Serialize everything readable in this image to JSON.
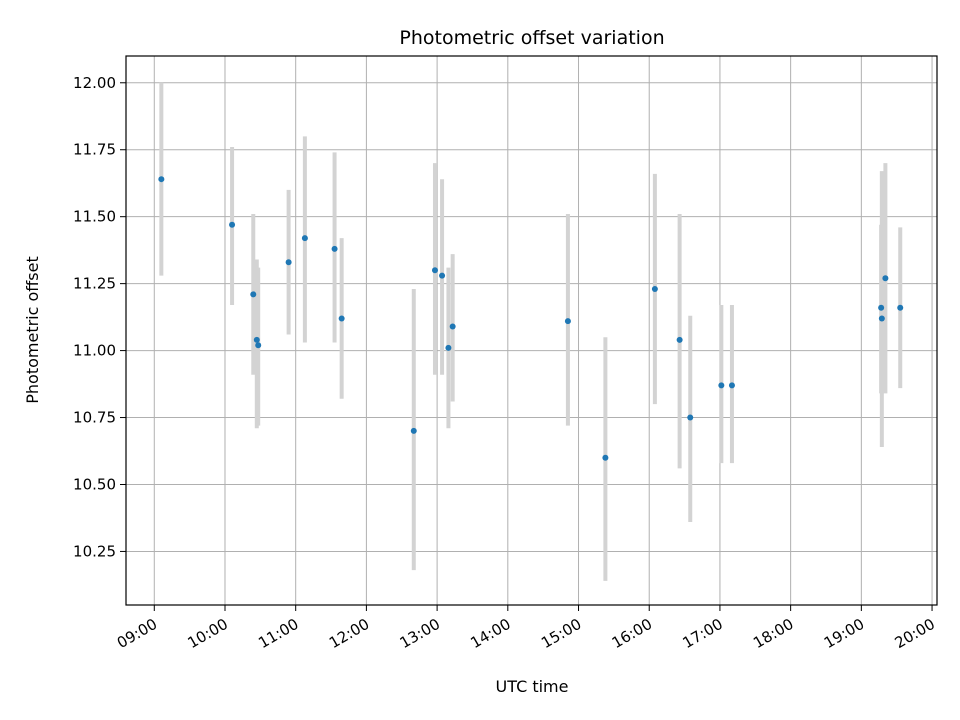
{
  "chart_data": {
    "type": "scatter",
    "title": "Photometric offset variation",
    "xlabel": "UTC time",
    "ylabel": "Photometric offset",
    "x_unit": "hours UTC",
    "xlim": [
      8.6,
      20.07
    ],
    "ylim": [
      10.05,
      12.1
    ],
    "x_ticks": [
      9,
      10,
      11,
      12,
      13,
      14,
      15,
      16,
      17,
      18,
      19,
      20
    ],
    "x_tick_labels": [
      "09:00",
      "10:00",
      "11:00",
      "12:00",
      "13:00",
      "14:00",
      "15:00",
      "16:00",
      "17:00",
      "18:00",
      "19:00",
      "20:00"
    ],
    "y_ticks": [
      10.25,
      10.5,
      10.75,
      11.0,
      11.25,
      11.5,
      11.75,
      12.0
    ],
    "y_tick_labels": [
      "10.25",
      "10.50",
      "10.75",
      "11.00",
      "11.25",
      "11.50",
      "11.75",
      "12.00"
    ],
    "grid": true,
    "legend": "none",
    "colors": {
      "point": "#1f77b4",
      "errorbar": "#d3d3d3",
      "grid": "#b0b0b0"
    },
    "points": [
      {
        "x": 9.1,
        "y": 11.64,
        "err_low": 11.28,
        "err_high": 12.0
      },
      {
        "x": 10.1,
        "y": 11.47,
        "err_low": 11.17,
        "err_high": 11.76
      },
      {
        "x": 10.4,
        "y": 11.21,
        "err_low": 10.91,
        "err_high": 11.51
      },
      {
        "x": 10.45,
        "y": 11.04,
        "err_low": 10.71,
        "err_high": 11.34
      },
      {
        "x": 10.47,
        "y": 11.02,
        "err_low": 10.72,
        "err_high": 11.31
      },
      {
        "x": 10.9,
        "y": 11.33,
        "err_low": 11.06,
        "err_high": 11.6
      },
      {
        "x": 11.13,
        "y": 11.42,
        "err_low": 11.03,
        "err_high": 11.8
      },
      {
        "x": 11.55,
        "y": 11.38,
        "err_low": 11.03,
        "err_high": 11.74
      },
      {
        "x": 11.65,
        "y": 11.12,
        "err_low": 10.82,
        "err_high": 11.42
      },
      {
        "x": 12.67,
        "y": 10.7,
        "err_low": 10.18,
        "err_high": 11.23
      },
      {
        "x": 12.97,
        "y": 11.3,
        "err_low": 10.91,
        "err_high": 11.7
      },
      {
        "x": 13.07,
        "y": 11.28,
        "err_low": 10.91,
        "err_high": 11.64
      },
      {
        "x": 13.16,
        "y": 11.01,
        "err_low": 10.71,
        "err_high": 11.31
      },
      {
        "x": 13.22,
        "y": 11.09,
        "err_low": 10.81,
        "err_high": 11.36
      },
      {
        "x": 14.85,
        "y": 11.11,
        "err_low": 10.72,
        "err_high": 11.51
      },
      {
        "x": 15.38,
        "y": 10.6,
        "err_low": 10.14,
        "err_high": 11.05
      },
      {
        "x": 16.08,
        "y": 11.23,
        "err_low": 10.8,
        "err_high": 11.66
      },
      {
        "x": 16.43,
        "y": 11.04,
        "err_low": 10.56,
        "err_high": 11.51
      },
      {
        "x": 16.58,
        "y": 10.75,
        "err_low": 10.36,
        "err_high": 11.13
      },
      {
        "x": 17.02,
        "y": 10.87,
        "err_low": 10.58,
        "err_high": 11.17
      },
      {
        "x": 17.17,
        "y": 10.87,
        "err_low": 10.58,
        "err_high": 11.17
      },
      {
        "x": 19.28,
        "y": 11.16,
        "err_low": 10.84,
        "err_high": 11.47
      },
      {
        "x": 19.29,
        "y": 11.12,
        "err_low": 10.64,
        "err_high": 11.67
      },
      {
        "x": 19.34,
        "y": 11.27,
        "err_low": 10.84,
        "err_high": 11.7
      },
      {
        "x": 19.55,
        "y": 11.16,
        "err_low": 10.86,
        "err_high": 11.46
      }
    ]
  }
}
